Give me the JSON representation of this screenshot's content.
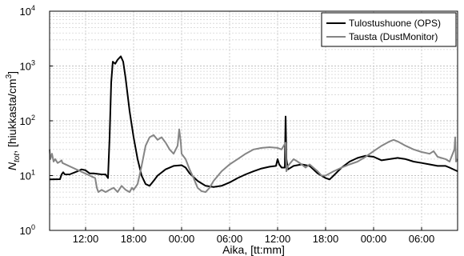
{
  "chart_data": {
    "type": "line",
    "xlabel": "Aika, [tt:mm]",
    "ylabel_main": "N",
    "ylabel_sub": "tot",
    "ylabel_rest": ", [hiukkasta/cm",
    "ylabel_sup": "3",
    "ylabel_end": "]",
    "y_scale": "log",
    "ylim": [
      1,
      10000
    ],
    "xlim": [
      7.5,
      58.5
    ],
    "grid": true,
    "legend_position": "top-right",
    "x_tick_labels": [
      {
        "x": 12,
        "label": "12:00"
      },
      {
        "x": 18,
        "label": "18:00"
      },
      {
        "x": 24,
        "label": "00:00"
      },
      {
        "x": 30,
        "label": "06:00"
      },
      {
        "x": 36,
        "label": "12:00"
      },
      {
        "x": 42,
        "label": "18:00"
      },
      {
        "x": 48,
        "label": "00:00"
      },
      {
        "x": 54,
        "label": "06:00"
      }
    ],
    "y_ticks": [
      {
        "exp": 0,
        "base": "10",
        "sup": "0"
      },
      {
        "exp": 1,
        "base": "10",
        "sup": "1"
      },
      {
        "exp": 2,
        "base": "10",
        "sup": "2"
      },
      {
        "exp": 3,
        "base": "10",
        "sup": "3"
      },
      {
        "exp": 4,
        "base": "10",
        "sup": "4"
      }
    ],
    "series": [
      {
        "name": "Tulostushuone (OPS)",
        "color": "#000000",
        "points": [
          [
            7.5,
            8.5
          ],
          [
            8.8,
            8.6
          ],
          [
            9.0,
            10.5
          ],
          [
            9.2,
            11.5
          ],
          [
            9.4,
            10.5
          ],
          [
            10,
            10.5
          ],
          [
            11,
            12
          ],
          [
            11.5,
            13
          ],
          [
            12,
            12.5
          ],
          [
            12.5,
            11
          ],
          [
            13,
            11
          ],
          [
            14,
            10.5
          ],
          [
            14.5,
            10.5
          ],
          [
            14.8,
            9
          ],
          [
            15.0,
            50
          ],
          [
            15.2,
            500
          ],
          [
            15.4,
            1200
          ],
          [
            15.7,
            1100
          ],
          [
            16.0,
            1300
          ],
          [
            16.4,
            1500
          ],
          [
            16.7,
            1200
          ],
          [
            17.0,
            600
          ],
          [
            17.5,
            150
          ],
          [
            18.0,
            50
          ],
          [
            18.5,
            20
          ],
          [
            19.0,
            10
          ],
          [
            19.5,
            7
          ],
          [
            20.0,
            6.5
          ],
          [
            20.5,
            8
          ],
          [
            21.0,
            10
          ],
          [
            22,
            13
          ],
          [
            23,
            15
          ],
          [
            24,
            15.5
          ],
          [
            24.5,
            14
          ],
          [
            25,
            11
          ],
          [
            26,
            8
          ],
          [
            27,
            6.5
          ],
          [
            28,
            6.2
          ],
          [
            29,
            6.5
          ],
          [
            30,
            7.5
          ],
          [
            31,
            9
          ],
          [
            32,
            10.5
          ],
          [
            33,
            12
          ],
          [
            34,
            13.5
          ],
          [
            35,
            14.5
          ],
          [
            35.8,
            15
          ],
          [
            36.0,
            20
          ],
          [
            36.2,
            16
          ],
          [
            36.5,
            14
          ],
          [
            36.9,
            14
          ],
          [
            37.0,
            120
          ],
          [
            37.1,
            20
          ],
          [
            37.3,
            13
          ],
          [
            38,
            15
          ],
          [
            39,
            16
          ],
          [
            40,
            15
          ],
          [
            41,
            11
          ],
          [
            42,
            9
          ],
          [
            42.5,
            8.5
          ],
          [
            43,
            10
          ],
          [
            44,
            14
          ],
          [
            45,
            18
          ],
          [
            46,
            21
          ],
          [
            47,
            23
          ],
          [
            48,
            22
          ],
          [
            49,
            19
          ],
          [
            50,
            20
          ],
          [
            51,
            21
          ],
          [
            52,
            20
          ],
          [
            53,
            18
          ],
          [
            54,
            17
          ],
          [
            55,
            16
          ],
          [
            56,
            15
          ],
          [
            57,
            15
          ],
          [
            57.5,
            14
          ],
          [
            58.5,
            12
          ]
        ]
      },
      {
        "name": "Tausta (DustMonitor)",
        "color": "#858585",
        "points": [
          [
            7.5,
            30
          ],
          [
            7.6,
            20
          ],
          [
            7.8,
            25
          ],
          [
            8.0,
            18
          ],
          [
            8.2,
            20
          ],
          [
            8.5,
            17
          ],
          [
            8.8,
            18
          ],
          [
            9.0,
            19
          ],
          [
            9.1,
            17
          ],
          [
            13.2,
            9
          ],
          [
            13.4,
            6
          ],
          [
            13.6,
            5
          ],
          [
            14,
            5.5
          ],
          [
            14.5,
            5
          ],
          [
            15,
            5.5
          ],
          [
            15.5,
            6
          ],
          [
            16,
            5
          ],
          [
            16.5,
            6.5
          ],
          [
            17,
            5.5
          ],
          [
            17.5,
            5
          ],
          [
            17.8,
            6
          ],
          [
            18.0,
            5.5
          ],
          [
            18.5,
            7
          ],
          [
            19,
            15
          ],
          [
            19.5,
            35
          ],
          [
            20,
            50
          ],
          [
            20.5,
            55
          ],
          [
            21,
            45
          ],
          [
            21.5,
            50
          ],
          [
            22,
            40
          ],
          [
            22.5,
            30
          ],
          [
            23,
            25
          ],
          [
            23.5,
            35
          ],
          [
            23.7,
            70
          ],
          [
            23.9,
            40
          ],
          [
            24,
            25
          ],
          [
            24.5,
            20
          ],
          [
            25,
            13
          ],
          [
            25.5,
            9
          ],
          [
            26,
            6
          ],
          [
            26.5,
            5.2
          ],
          [
            27,
            5
          ],
          [
            27.5,
            6
          ],
          [
            28,
            8
          ],
          [
            29,
            12
          ],
          [
            30,
            16
          ],
          [
            31,
            20
          ],
          [
            32,
            25
          ],
          [
            33,
            30
          ],
          [
            34,
            32
          ],
          [
            35,
            33
          ],
          [
            36,
            32
          ],
          [
            36.5,
            30
          ],
          [
            37,
            40
          ],
          [
            37.1,
            12
          ],
          [
            37.3,
            15
          ],
          [
            38,
            20
          ],
          [
            38.5,
            18
          ],
          [
            39,
            16
          ],
          [
            39.5,
            14
          ],
          [
            40,
            16
          ],
          [
            41,
            12
          ],
          [
            41.5,
            10
          ],
          [
            42,
            10
          ],
          [
            43,
            12
          ],
          [
            44,
            14
          ],
          [
            45,
            16
          ],
          [
            46,
            18
          ],
          [
            47,
            22
          ],
          [
            48,
            28
          ],
          [
            49,
            35
          ],
          [
            50,
            42
          ],
          [
            50.5,
            45
          ],
          [
            51,
            42
          ],
          [
            52,
            35
          ],
          [
            53,
            30
          ],
          [
            54,
            27
          ],
          [
            55,
            25
          ],
          [
            55.5,
            28
          ],
          [
            56,
            22
          ],
          [
            57,
            20
          ],
          [
            57.5,
            18
          ],
          [
            58.1,
            30
          ],
          [
            58.2,
            50
          ],
          [
            58.3,
            18
          ],
          [
            58.5,
            20
          ]
        ]
      }
    ]
  }
}
